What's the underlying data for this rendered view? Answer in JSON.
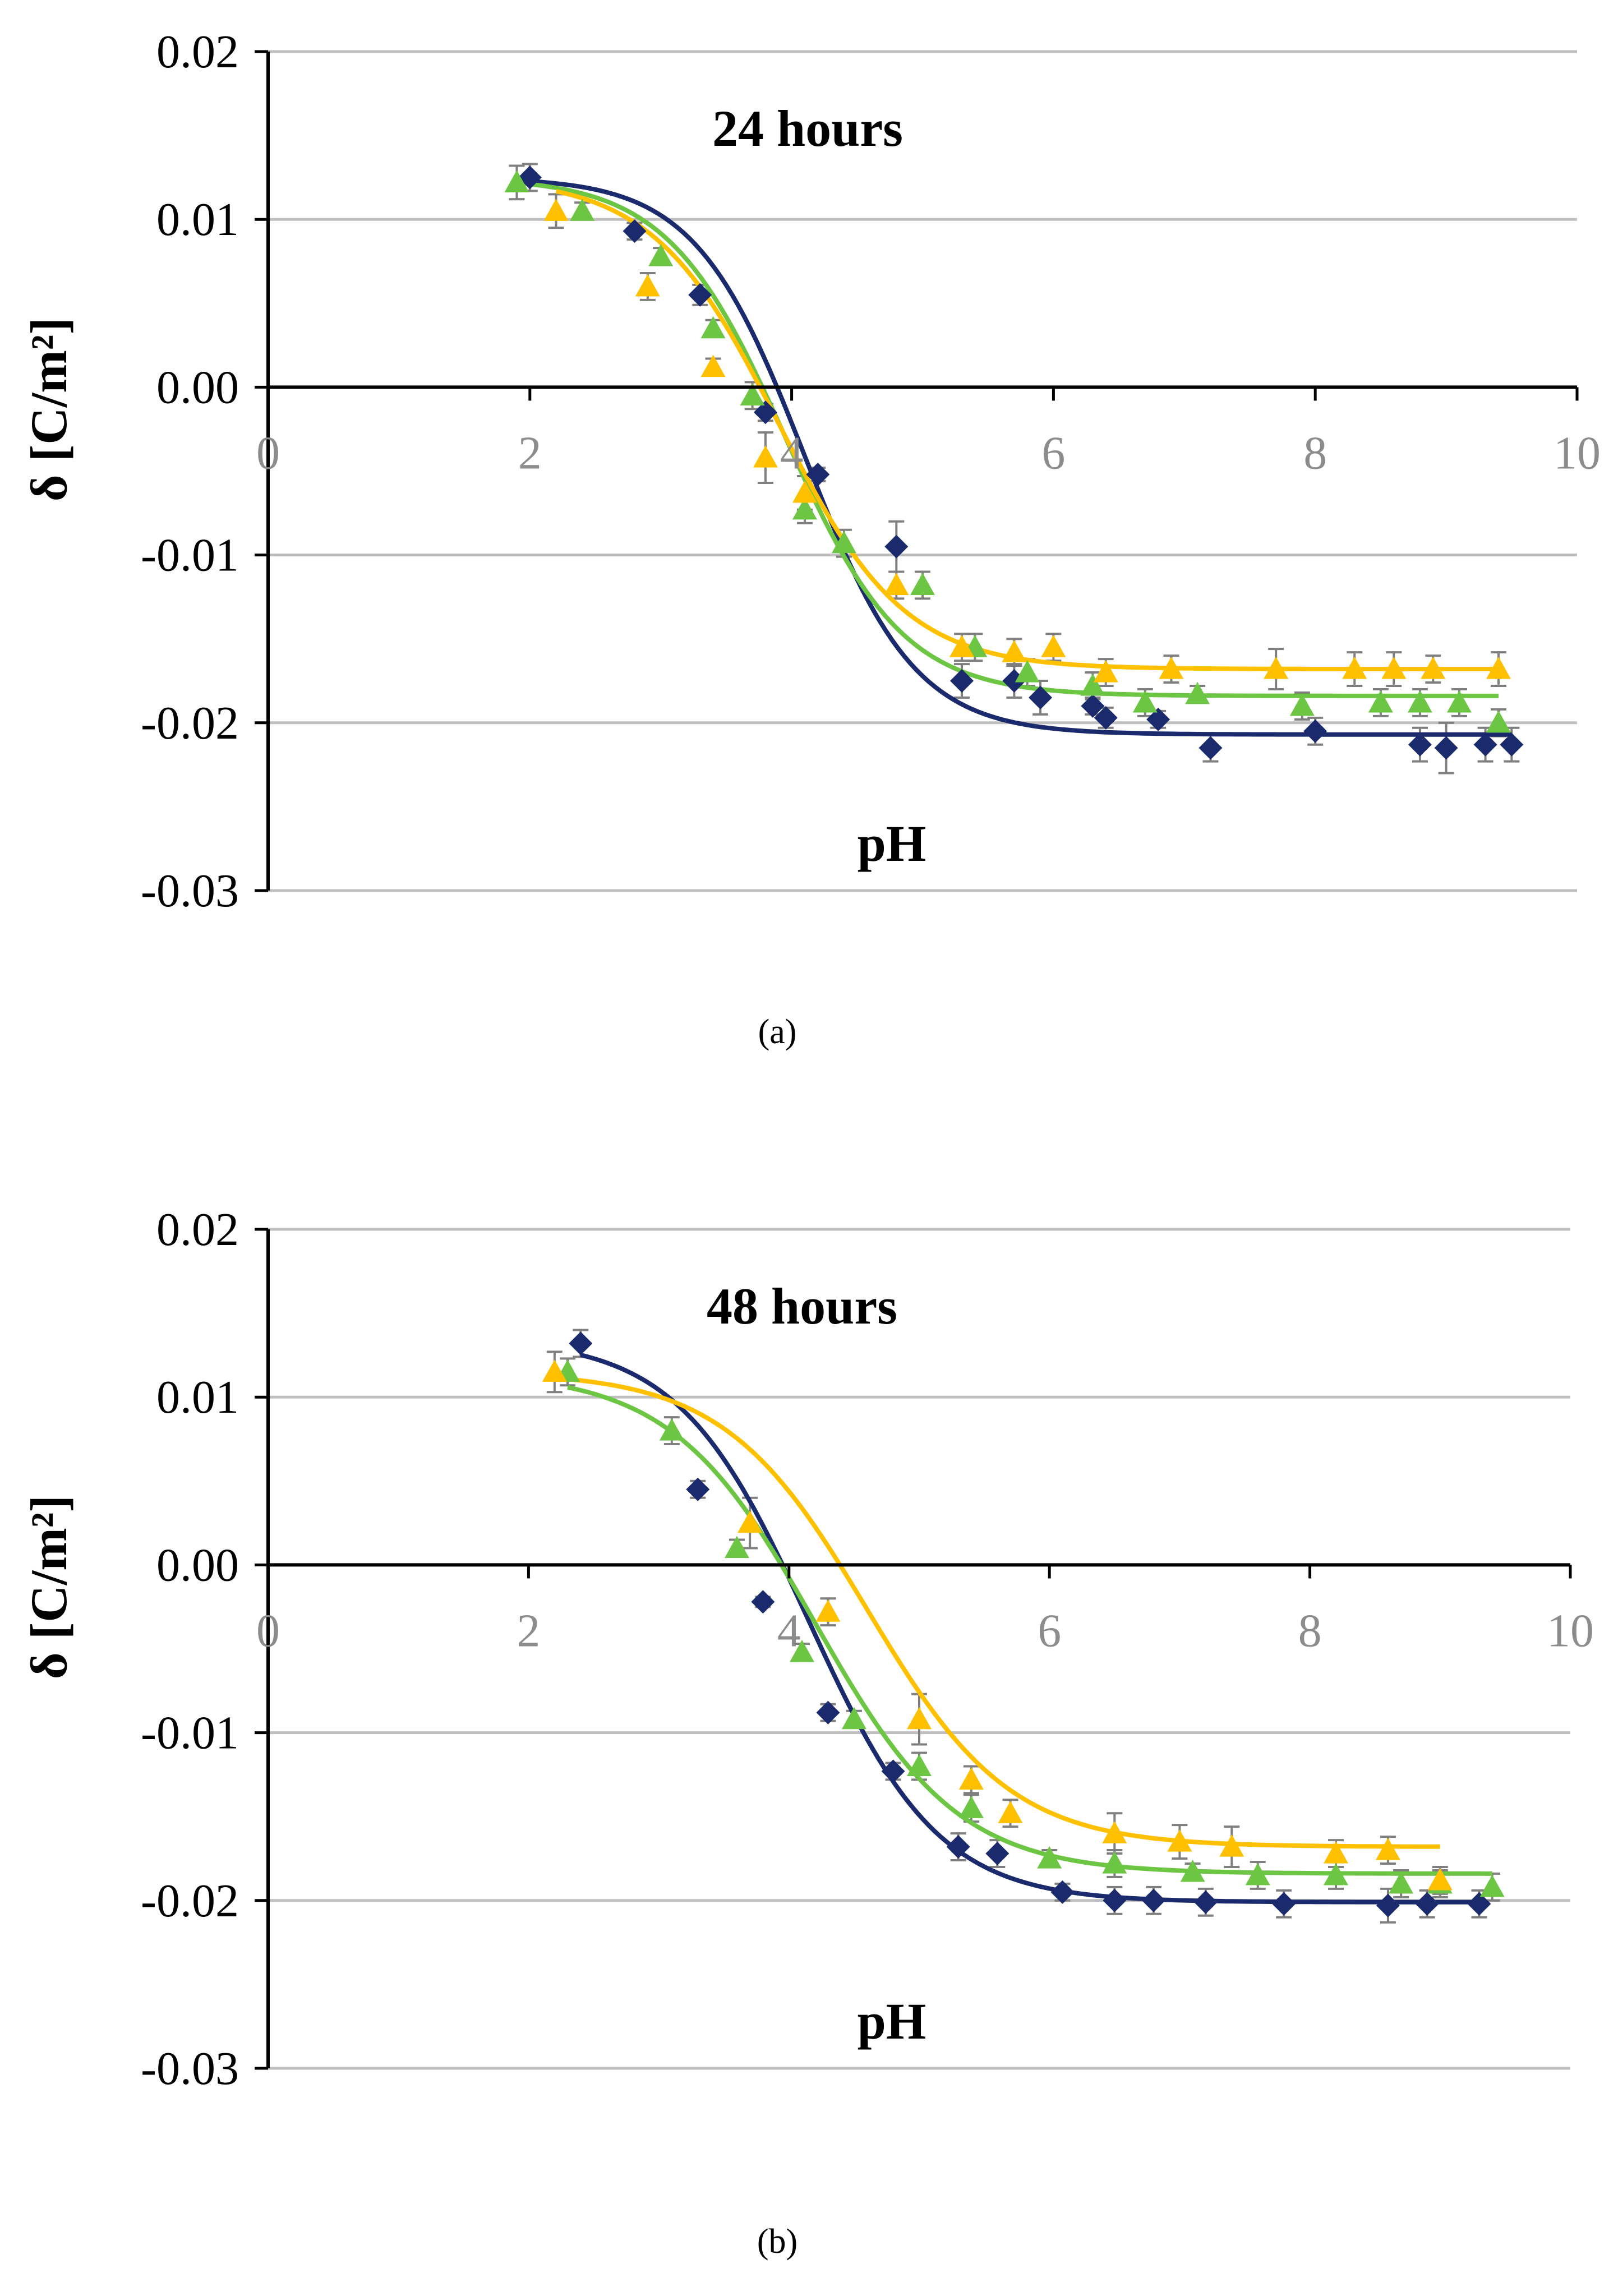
{
  "chart_data": [
    {
      "type": "scatter",
      "panel": "a",
      "title": "24 hours",
      "xlabel": "pH",
      "ylabel": "δ  [C/m²]",
      "caption": "(a)",
      "xlim": [
        0,
        10
      ],
      "ylim": [
        -0.03,
        0.02
      ],
      "xticks": [
        "0",
        "2",
        "4",
        "6",
        "8",
        "10"
      ],
      "yticks": [
        "0.02",
        "0.01",
        "0.00",
        "-0.01",
        "-0.02",
        "-0.03"
      ],
      "grid": true,
      "legend": "none",
      "series": [
        {
          "name": "series-navy",
          "color": "#1a2a6c",
          "marker": "diamond",
          "x": [
            2.0,
            2.8,
            3.3,
            3.8,
            4.2,
            4.8,
            5.3,
            5.7,
            5.9,
            6.3,
            6.4,
            6.8,
            7.2,
            8.0,
            8.8,
            9.0,
            9.3,
            9.5
          ],
          "y": [
            0.0125,
            0.0093,
            0.0055,
            -0.0015,
            -0.0052,
            -0.0095,
            -0.0175,
            -0.0175,
            -0.0185,
            -0.019,
            -0.0197,
            -0.0198,
            -0.0215,
            -0.0205,
            -0.0213,
            -0.0215,
            -0.0213,
            -0.0213
          ],
          "err": [
            0.0008,
            0.0005,
            0.0006,
            0.0005,
            0.0004,
            0.0015,
            0.001,
            0.001,
            0.001,
            0.0005,
            0.0006,
            0.0005,
            0.0008,
            0.0008,
            0.001,
            0.0015,
            0.001,
            0.001
          ],
          "fit": {
            "top": 0.0125,
            "bottom": -0.0207,
            "x0": 4.1,
            "k": 0.42
          }
        },
        {
          "name": "series-green",
          "color": "#6cc644",
          "marker": "triangle",
          "x": [
            1.9,
            2.4,
            3.0,
            3.4,
            3.7,
            4.1,
            4.4,
            5.0,
            5.4,
            5.8,
            6.3,
            6.7,
            7.1,
            7.9,
            8.5,
            8.8,
            9.1,
            9.4
          ],
          "y": [
            0.0122,
            0.0105,
            0.0078,
            0.0035,
            -0.0005,
            -0.0073,
            -0.0093,
            -0.0118,
            -0.0155,
            -0.017,
            -0.0178,
            -0.0188,
            -0.0183,
            -0.019,
            -0.0188,
            -0.0188,
            -0.0188,
            -0.02
          ],
          "err": [
            0.001,
            0.0005,
            0.0005,
            0.0005,
            0.0008,
            0.0008,
            0.0008,
            0.0008,
            0.0008,
            0.0008,
            0.0008,
            0.0008,
            0.0005,
            0.0008,
            0.0008,
            0.0008,
            0.0008,
            0.0008
          ],
          "fit": {
            "top": 0.0125,
            "bottom": -0.0184,
            "x0": 3.95,
            "k": 0.45
          }
        },
        {
          "name": "series-orange",
          "color": "#ffc000",
          "marker": "triangle",
          "x": [
            2.2,
            2.9,
            3.4,
            3.8,
            4.1,
            4.8,
            5.3,
            5.7,
            6.0,
            6.4,
            6.9,
            7.7,
            8.3,
            8.6,
            8.9,
            9.4
          ],
          "y": [
            0.0105,
            0.006,
            0.0012,
            -0.0042,
            -0.0063,
            -0.0118,
            -0.0155,
            -0.0158,
            -0.0155,
            -0.017,
            -0.0168,
            -0.0168,
            -0.0168,
            -0.0168,
            -0.0168,
            -0.0168
          ],
          "err": [
            0.001,
            0.0008,
            0.0005,
            0.0015,
            0.001,
            0.0008,
            0.0008,
            0.0008,
            0.0008,
            0.0008,
            0.0008,
            0.0012,
            0.001,
            0.001,
            0.0008,
            0.001
          ],
          "fit": {
            "top": 0.0125,
            "bottom": -0.0168,
            "x0": 3.9,
            "k": 0.48
          }
        }
      ]
    },
    {
      "type": "scatter",
      "panel": "b",
      "title": "48 hours",
      "xlabel": "pH",
      "ylabel": "δ  [C/m²]",
      "caption": "(b)",
      "xlim": [
        0,
        10
      ],
      "ylim": [
        -0.03,
        0.02
      ],
      "xticks": [
        "0",
        "2",
        "4",
        "6",
        "8",
        "10"
      ],
      "yticks": [
        "0.02",
        "0.01",
        "0.00",
        "-0.01",
        "-0.02",
        "-0.03"
      ],
      "grid": true,
      "legend": "none",
      "series": [
        {
          "name": "series-navy",
          "color": "#1a2a6c",
          "marker": "diamond",
          "x": [
            2.4,
            3.3,
            3.8,
            4.3,
            4.8,
            5.3,
            5.6,
            6.1,
            6.5,
            6.8,
            7.2,
            7.8,
            8.6,
            8.9,
            9.3
          ],
          "y": [
            0.0132,
            0.0045,
            -0.0022,
            -0.0088,
            -0.0123,
            -0.0168,
            -0.0172,
            -0.0195,
            -0.02,
            -0.02,
            -0.0201,
            -0.0202,
            -0.0203,
            -0.0202,
            -0.0202
          ],
          "err": [
            0.0008,
            0.0005,
            0.0003,
            0.0005,
            0.0005,
            0.0008,
            0.0008,
            0.0005,
            0.0008,
            0.0008,
            0.0008,
            0.0008,
            0.001,
            0.0008,
            0.0008
          ],
          "fit": {
            "top": 0.0135,
            "bottom": -0.0201,
            "x0": 4.15,
            "k": 0.5
          }
        },
        {
          "name": "series-green",
          "color": "#6cc644",
          "marker": "triangle",
          "x": [
            2.3,
            3.1,
            3.6,
            4.1,
            4.5,
            5.0,
            5.4,
            6.0,
            6.5,
            7.1,
            7.6,
            8.2,
            8.7,
            9.0,
            9.4
          ],
          "y": [
            0.0115,
            0.008,
            0.001,
            -0.0052,
            -0.0092,
            -0.012,
            -0.0145,
            -0.0175,
            -0.0178,
            -0.0183,
            -0.0185,
            -0.0185,
            -0.019,
            -0.019,
            -0.0192
          ],
          "err": [
            0.0008,
            0.0008,
            0.0005,
            0.0005,
            0.0005,
            0.0008,
            0.0008,
            0.0005,
            0.0008,
            0.0005,
            0.0008,
            0.0008,
            0.0008,
            0.0008,
            0.0008
          ],
          "fit": {
            "top": 0.0115,
            "bottom": -0.0184,
            "x0": 4.2,
            "k": 0.55
          }
        },
        {
          "name": "series-orange",
          "color": "#ffc000",
          "marker": "triangle",
          "x": [
            2.2,
            3.7,
            4.3,
            5.0,
            5.4,
            5.7,
            6.5,
            7.0,
            7.4,
            8.2,
            8.6,
            9.0
          ],
          "y": [
            0.0115,
            0.0025,
            -0.0028,
            -0.0092,
            -0.0128,
            -0.0148,
            -0.016,
            -0.0165,
            -0.0168,
            -0.0172,
            -0.017,
            -0.0188
          ],
          "err": [
            0.0012,
            0.0015,
            0.0008,
            0.0015,
            0.0008,
            0.0008,
            0.0012,
            0.001,
            0.0012,
            0.0008,
            0.0008,
            0.0008
          ],
          "fit": {
            "top": 0.0115,
            "bottom": -0.0168,
            "x0": 4.6,
            "k": 0.55,
            "xmax": 9.0
          }
        }
      ]
    }
  ]
}
